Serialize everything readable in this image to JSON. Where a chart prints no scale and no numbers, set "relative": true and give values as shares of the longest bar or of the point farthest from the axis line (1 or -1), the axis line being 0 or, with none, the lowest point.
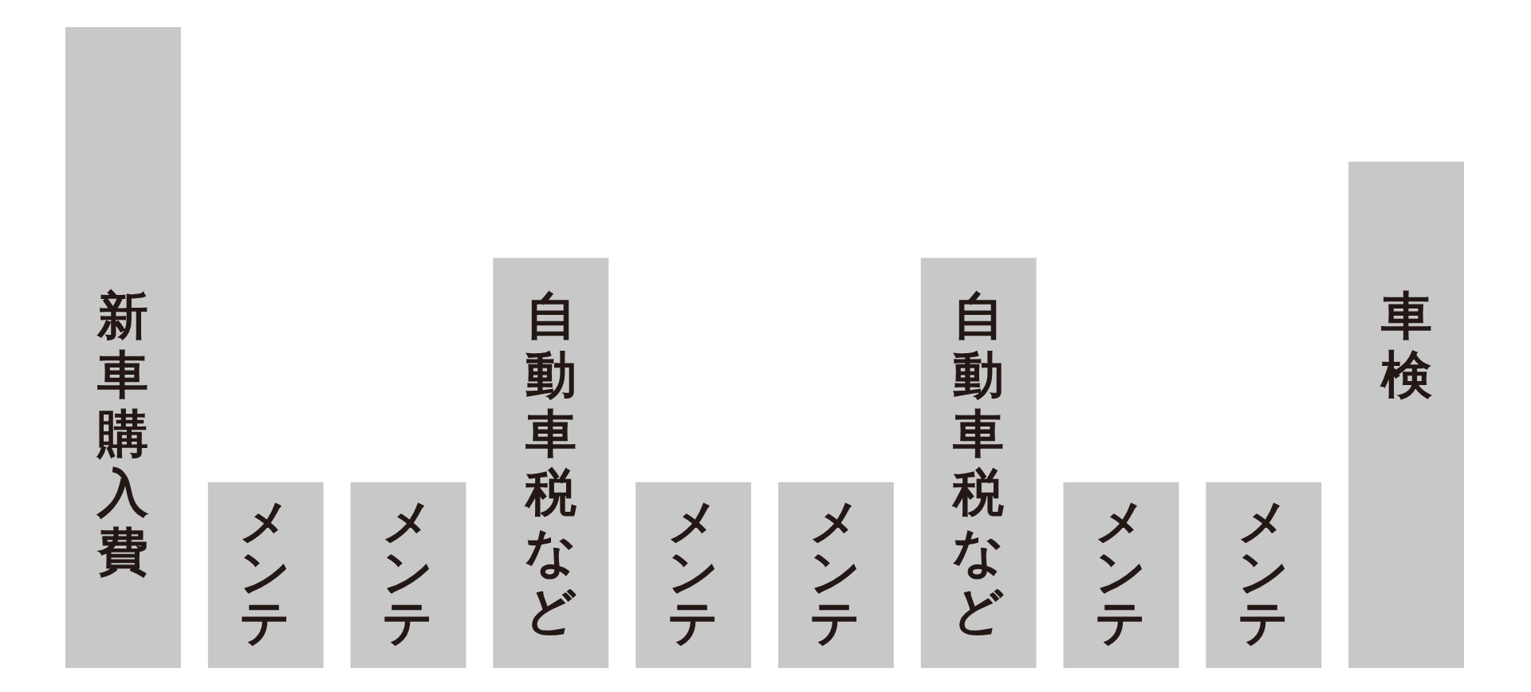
{
  "chart_data": {
    "type": "bar",
    "relative": true,
    "categories": [
      "新車購入費",
      "メンテ",
      "メンテ",
      "自動車税など",
      "メンテ",
      "メンテ",
      "自動車税など",
      "メンテ",
      "メンテ",
      "車検"
    ],
    "values": [
      1,
      0.29,
      0.29,
      0.64,
      0.29,
      0.29,
      0.64,
      0.29,
      0.29,
      0.79
    ],
    "color": "#c8c8c8"
  }
}
